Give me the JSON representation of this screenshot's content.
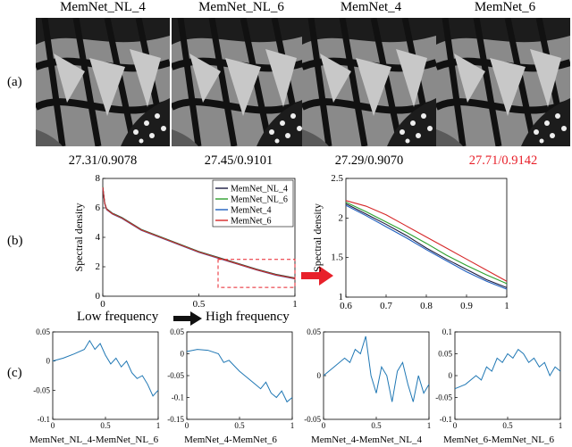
{
  "columns": [
    "MemNet_NL_4",
    "MemNet_NL_6",
    "MemNet_4",
    "MemNet_6"
  ],
  "row_labels": {
    "a": "(a)",
    "b": "(b)",
    "c": "(c)"
  },
  "metrics": [
    {
      "text": "27.31/0.9078",
      "color": "#000000"
    },
    {
      "text": "27.45/0.9101",
      "color": "#000000"
    },
    {
      "text": "27.29/0.9070",
      "color": "#000000"
    },
    {
      "text": "27.71/0.9142",
      "color": "#e8202a"
    }
  ],
  "frequency": {
    "low": "Low frequency",
    "high": "High frequency"
  },
  "chart_data": [
    {
      "type": "line",
      "ylabel": "Spectral density",
      "xlim": [
        0,
        1
      ],
      "ylim": [
        0,
        8
      ],
      "xticks": [
        "0",
        "0.5",
        "1"
      ],
      "yticks": [
        "0",
        "2",
        "4",
        "6",
        "8"
      ],
      "legend_position": "top-right",
      "series": [
        {
          "name": "MemNet_NL_4",
          "color": "#1a1a40"
        },
        {
          "name": "MemNet_NL_6",
          "color": "#2ca02c"
        },
        {
          "name": "MemNet_4",
          "color": "#1f5fbf"
        },
        {
          "name": "MemNet_6",
          "color": "#d62728"
        }
      ],
      "x": [
        0,
        0.01,
        0.02,
        0.05,
        0.1,
        0.15,
        0.2,
        0.3,
        0.4,
        0.5,
        0.6,
        0.7,
        0.8,
        0.9,
        1.0
      ],
      "y": [
        7.4,
        6.3,
        5.9,
        5.6,
        5.3,
        4.9,
        4.5,
        4.0,
        3.5,
        3.0,
        2.6,
        2.2,
        1.8,
        1.45,
        1.2
      ],
      "zoom_box": {
        "x": [
          0.6,
          1.0
        ],
        "y": [
          0.6,
          2.5
        ]
      }
    },
    {
      "type": "line",
      "ylabel": "Spectral density",
      "xlim": [
        0.6,
        1
      ],
      "ylim": [
        1,
        2.5
      ],
      "xticks": [
        "0.6",
        "0.7",
        "0.8",
        "0.9",
        "1"
      ],
      "yticks": [
        "1",
        "1.5",
        "2",
        "2.5"
      ],
      "x": [
        0.6,
        0.65,
        0.7,
        0.75,
        0.8,
        0.85,
        0.9,
        0.95,
        1.0
      ],
      "series": [
        {
          "name": "MemNet_NL_4",
          "color": "#1a1a40",
          "values": [
            2.18,
            2.05,
            1.92,
            1.78,
            1.62,
            1.48,
            1.35,
            1.22,
            1.12
          ]
        },
        {
          "name": "MemNet_NL_6",
          "color": "#2ca02c",
          "values": [
            2.2,
            2.08,
            1.95,
            1.82,
            1.68,
            1.53,
            1.4,
            1.28,
            1.17
          ]
        },
        {
          "name": "MemNet_4",
          "color": "#1f5fbf",
          "values": [
            2.16,
            2.03,
            1.89,
            1.75,
            1.6,
            1.46,
            1.32,
            1.2,
            1.1
          ]
        },
        {
          "name": "MemNet_6",
          "color": "#d62728",
          "values": [
            2.22,
            2.15,
            2.04,
            1.9,
            1.76,
            1.62,
            1.48,
            1.34,
            1.2
          ]
        }
      ]
    },
    {
      "type": "line",
      "xlabel": "MemNet_NL_4-MemNet_NL_6",
      "xlim": [
        0,
        1
      ],
      "ylim": [
        -0.1,
        0.05
      ],
      "xticks": [
        "0",
        "0.5",
        "1"
      ],
      "yticks": [
        "-0.1",
        "-0.05",
        "0",
        "0.05"
      ],
      "x": [
        0,
        0.1,
        0.2,
        0.3,
        0.35,
        0.4,
        0.45,
        0.5,
        0.55,
        0.6,
        0.65,
        0.7,
        0.75,
        0.8,
        0.85,
        0.9,
        0.95,
        1.0
      ],
      "values": [
        0.0,
        0.005,
        0.012,
        0.02,
        0.035,
        0.02,
        0.03,
        0.01,
        -0.005,
        0.005,
        -0.01,
        0.0,
        -0.02,
        -0.03,
        -0.025,
        -0.04,
        -0.06,
        -0.05
      ]
    },
    {
      "type": "line",
      "xlabel": "MemNet_4-MemNet_6",
      "xlim": [
        0,
        1
      ],
      "ylim": [
        -0.15,
        0.05
      ],
      "xticks": [
        "0",
        "0.5",
        "1"
      ],
      "yticks": [
        "-0.15",
        "-0.1",
        "-0.05",
        "0",
        "0.05"
      ],
      "x": [
        0,
        0.1,
        0.2,
        0.3,
        0.35,
        0.4,
        0.5,
        0.55,
        0.6,
        0.65,
        0.7,
        0.75,
        0.8,
        0.85,
        0.9,
        0.95,
        1.0
      ],
      "values": [
        0.005,
        0.01,
        0.008,
        0.0,
        -0.02,
        -0.015,
        -0.04,
        -0.05,
        -0.06,
        -0.07,
        -0.08,
        -0.065,
        -0.09,
        -0.1,
        -0.085,
        -0.11,
        -0.1
      ]
    },
    {
      "type": "line",
      "xlabel": "MemNet_4-MemNet_NL_4",
      "xlim": [
        0,
        1
      ],
      "ylim": [
        -0.05,
        0.05
      ],
      "xticks": [
        "0",
        "0.5",
        "1"
      ],
      "yticks": [
        "-0.05",
        "0",
        "0.05"
      ],
      "x": [
        0,
        0.1,
        0.2,
        0.25,
        0.3,
        0.35,
        0.4,
        0.45,
        0.5,
        0.55,
        0.6,
        0.65,
        0.7,
        0.75,
        0.8,
        0.85,
        0.9,
        0.95,
        1.0
      ],
      "values": [
        0.0,
        0.01,
        0.02,
        0.015,
        0.03,
        0.025,
        0.045,
        0.0,
        -0.02,
        0.01,
        0.0,
        -0.03,
        0.005,
        0.015,
        -0.01,
        -0.03,
        0.0,
        -0.02,
        -0.01
      ]
    },
    {
      "type": "line",
      "xlabel": "MemNet_6-MemNet_NL_6",
      "xlim": [
        0,
        1
      ],
      "ylim": [
        -0.1,
        0.1
      ],
      "xticks": [
        "0",
        "0.5",
        "1"
      ],
      "yticks": [
        "-0.1",
        "-0.05",
        "0",
        "0.05",
        "0.1"
      ],
      "x": [
        0,
        0.1,
        0.2,
        0.25,
        0.3,
        0.35,
        0.4,
        0.45,
        0.5,
        0.55,
        0.6,
        0.65,
        0.7,
        0.75,
        0.8,
        0.85,
        0.9,
        0.95,
        1.0
      ],
      "values": [
        -0.03,
        -0.02,
        0.0,
        -0.01,
        0.02,
        0.01,
        0.04,
        0.03,
        0.05,
        0.04,
        0.06,
        0.05,
        0.03,
        0.04,
        0.02,
        0.03,
        0.0,
        0.02,
        0.01
      ]
    }
  ]
}
